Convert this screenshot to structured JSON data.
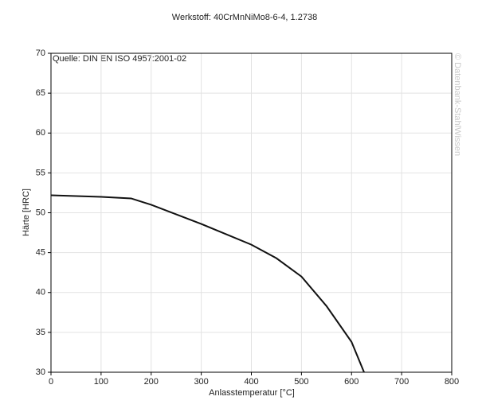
{
  "chart_data": {
    "type": "line",
    "title": "Werkstoff: 40CrMnNiMo8-6-4, 1.2738",
    "annotation": "Quelle: DIN EN ISO 4957:2001-02",
    "watermark": "© Datenbank-StahlWissen",
    "x_label": "Anlasstemperatur [°C]",
    "y_label": "Härte [HRC]",
    "x": [
      0,
      50,
      100,
      160,
      200,
      300,
      400,
      450,
      500,
      550,
      600,
      625
    ],
    "series": [
      {
        "name": "40CrMnNiMo8-6-4",
        "color": "#111111",
        "values": [
          52.2,
          52.1,
          52.0,
          51.8,
          51.0,
          48.6,
          46.0,
          44.3,
          42.0,
          38.3,
          33.8,
          30.0
        ]
      }
    ],
    "xlim": [
      0,
      800
    ],
    "xticks": [
      0,
      100,
      200,
      300,
      400,
      500,
      600,
      700,
      800
    ],
    "ylim": [
      30,
      70
    ],
    "yticks": [
      30,
      35,
      40,
      45,
      50,
      55,
      60,
      65,
      70
    ],
    "grid": true
  }
}
